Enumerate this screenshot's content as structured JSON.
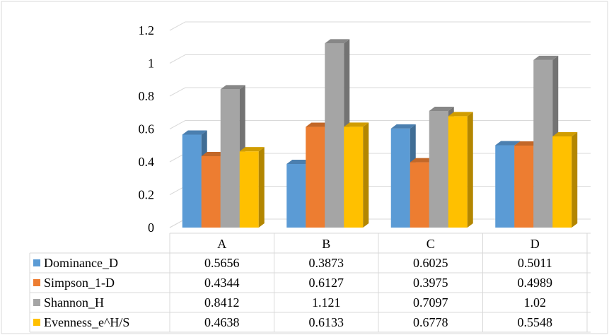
{
  "chart_data": {
    "type": "bar",
    "style": "3d-clustered-column-with-data-table",
    "categories": [
      "A",
      "B",
      "C",
      "D"
    ],
    "series": [
      {
        "name": "Dominance_D",
        "color": "#5B9BD5",
        "values": [
          0.5656,
          0.3873,
          0.6025,
          0.5011
        ],
        "labels": [
          "0.5656",
          "0.3873",
          "0.6025",
          "0.5011"
        ]
      },
      {
        "name": "Simpson_1-D",
        "color": "#ED7D31",
        "values": [
          0.4344,
          0.6127,
          0.3975,
          0.4989
        ],
        "labels": [
          "0.4344",
          "0.6127",
          "0.3975",
          "0.4989"
        ]
      },
      {
        "name": "Shannon_H",
        "color": "#A5A5A5",
        "values": [
          0.8412,
          1.121,
          0.7097,
          1.02
        ],
        "labels": [
          "0.8412",
          "1.121",
          "0.7097",
          "1.02"
        ]
      },
      {
        "name": "Evenness_e^H/S",
        "color": "#FFC000",
        "values": [
          0.4638,
          0.6133,
          0.6778,
          0.5548
        ],
        "labels": [
          "0.4638",
          "0.6133",
          "0.6778",
          "0.5548"
        ]
      }
    ],
    "yticks": [
      "0",
      "0.2",
      "0.4",
      "0.6",
      "0.8",
      "1",
      "1.2"
    ],
    "ylim": [
      0,
      1.2
    ],
    "grid": true,
    "legend": "data-table-left"
  }
}
